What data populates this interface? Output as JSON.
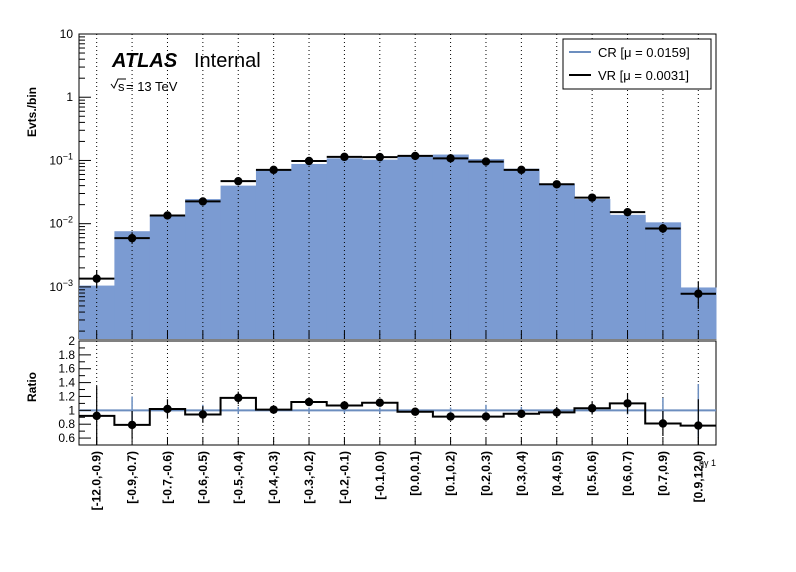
{
  "chart_data": {
    "type": "bar",
    "label": {
      "atlas": "ATLAS",
      "status": "Internal",
      "energy_prefix": "s",
      "energy_suffix": " = 13 TeV"
    },
    "x_axis": {
      "label": "ηγ 1"
    },
    "categories": [
      "[-12.0,-0.9)",
      "[-0.9,-0.7)",
      "[-0.7,-0.6)",
      "[-0.6,-0.5)",
      "[-0.5,-0.4)",
      "[-0.4,-0.3)",
      "[-0.3,-0.2)",
      "[-0.2,-0.1)",
      "[-0.1,0.0)",
      "[0.0,0.1)",
      "[0.1,0.2)",
      "[0.2,0.3)",
      "[0.3,0.4)",
      "[0.4,0.5)",
      "[0.5,0.6)",
      "[0.6,0.7)",
      "[0.7,0.9)",
      "[0.9,12.0)"
    ],
    "top": {
      "ylabel": "Evts./bin",
      "scale": "log",
      "ylim": [
        0.00015,
        10
      ],
      "y_ticks": [
        {
          "value": 10,
          "label": "10"
        },
        {
          "value": 1,
          "label": "1"
        },
        {
          "value": 0.1,
          "label": "10",
          "exp": "−1"
        },
        {
          "value": 0.01,
          "label": "10",
          "exp": "−2"
        },
        {
          "value": 0.001,
          "label": "10",
          "exp": "−3"
        }
      ]
    },
    "bottom": {
      "ylabel": "Ratio",
      "ylim": [
        0.5,
        2.0
      ],
      "y_ticks": [
        {
          "value": 2,
          "label": "2"
        },
        {
          "value": 1.8,
          "label": "1.8"
        },
        {
          "value": 1.6,
          "label": "1.6"
        },
        {
          "value": 1.4,
          "label": "1.4"
        },
        {
          "value": 1.2,
          "label": "1.2"
        },
        {
          "value": 1,
          "label": "1"
        },
        {
          "value": 0.8,
          "label": "0.8"
        },
        {
          "value": 0.6,
          "label": "0.6"
        }
      ]
    },
    "series": [
      {
        "name": "CR [μ = 0.0159]",
        "style": "filled",
        "color": "#7b9bd2",
        "line_color": "#6c8ebf",
        "values": [
          0.00105,
          0.0076,
          0.0132,
          0.0245,
          0.04,
          0.07,
          0.088,
          0.108,
          0.103,
          0.118,
          0.124,
          0.105,
          0.074,
          0.043,
          0.0245,
          0.0138,
          0.0105,
          0.00098
        ],
        "ratio_err": [
          0.02,
          0.2,
          0.05,
          0.08,
          0.05,
          0.04,
          0.04,
          0.04,
          0.04,
          0.03,
          0.04,
          0.08,
          0.05,
          0.05,
          0.04,
          0.06,
          0.18,
          0.38
        ]
      },
      {
        "name": "VR [μ = 0.0031]",
        "style": "points",
        "color": "#000000",
        "values": [
          0.00135,
          0.0059,
          0.0135,
          0.0225,
          0.047,
          0.071,
          0.098,
          0.114,
          0.113,
          0.118,
          0.108,
          0.096,
          0.071,
          0.042,
          0.0258,
          0.0152,
          0.0084,
          0.00078
        ],
        "err_up": [
          0.0005,
          0.0014,
          0.0018,
          0.0026,
          0.004,
          0.005,
          0.006,
          0.007,
          0.007,
          0.007,
          0.007,
          0.006,
          0.005,
          0.004,
          0.003,
          0.0022,
          0.0015,
          0.00045
        ],
        "err_down": [
          0.0004,
          0.0011,
          0.0016,
          0.0023,
          0.0037,
          0.005,
          0.006,
          0.007,
          0.007,
          0.007,
          0.007,
          0.006,
          0.005,
          0.004,
          0.003,
          0.002,
          0.0013,
          0.00033
        ],
        "ratio": [
          0.92,
          0.79,
          1.02,
          0.94,
          1.18,
          1.01,
          1.12,
          1.07,
          1.11,
          0.98,
          0.91,
          0.91,
          0.95,
          0.97,
          1.03,
          1.1,
          0.81,
          0.78
        ],
        "ratio_err": [
          0.43,
          0.2,
          0.14,
          0.12,
          0.09,
          0.05,
          0.04,
          0.04,
          0.04,
          0.04,
          0.04,
          0.04,
          0.05,
          0.08,
          0.09,
          0.15,
          0.18,
          0.38
        ]
      }
    ],
    "legend": {
      "position": "top-right"
    },
    "grid": {
      "vertical_dotted": true
    }
  }
}
